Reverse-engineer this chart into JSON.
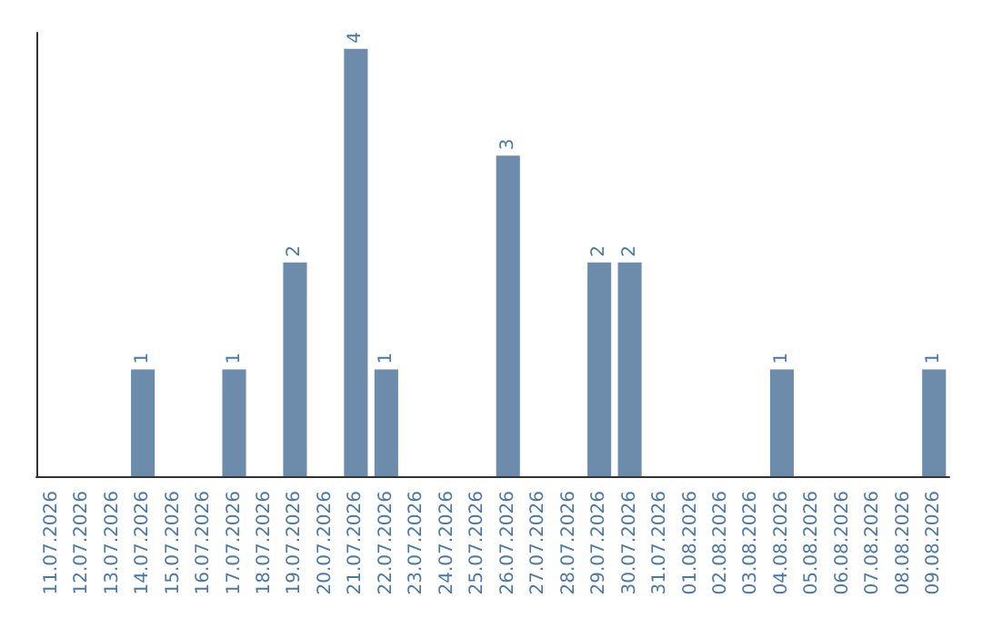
{
  "chart_data": {
    "type": "bar",
    "categories": [
      "11.07.2026",
      "12.07.2026",
      "13.07.2026",
      "14.07.2026",
      "15.07.2026",
      "16.07.2026",
      "17.07.2026",
      "18.07.2026",
      "19.07.2026",
      "20.07.2026",
      "21.07.2026",
      "22.07.2026",
      "23.07.2026",
      "24.07.2026",
      "25.07.2026",
      "26.07.2026",
      "27.07.2026",
      "28.07.2026",
      "29.07.2026",
      "30.07.2026",
      "31.07.2026",
      "01.08.2026",
      "02.08.2026",
      "03.08.2026",
      "04.08.2026",
      "05.08.2026",
      "06.08.2026",
      "07.08.2026",
      "08.08.2026",
      "09.08.2026"
    ],
    "values": [
      0,
      0,
      0,
      1,
      0,
      0,
      1,
      0,
      2,
      0,
      4,
      1,
      0,
      0,
      0,
      3,
      0,
      0,
      2,
      2,
      0,
      0,
      0,
      0,
      1,
      0,
      0,
      0,
      0,
      1
    ],
    "value_labels": [
      null,
      null,
      null,
      "1",
      null,
      null,
      "1",
      null,
      "2",
      null,
      "4",
      "1",
      null,
      null,
      null,
      "3",
      null,
      null,
      "2",
      "2",
      null,
      null,
      null,
      null,
      "1",
      null,
      null,
      null,
      null,
      "1"
    ],
    "color": "#6d8cab",
    "ylim": [
      0,
      4.15
    ],
    "tick_labels": "x",
    "grid": false
  }
}
